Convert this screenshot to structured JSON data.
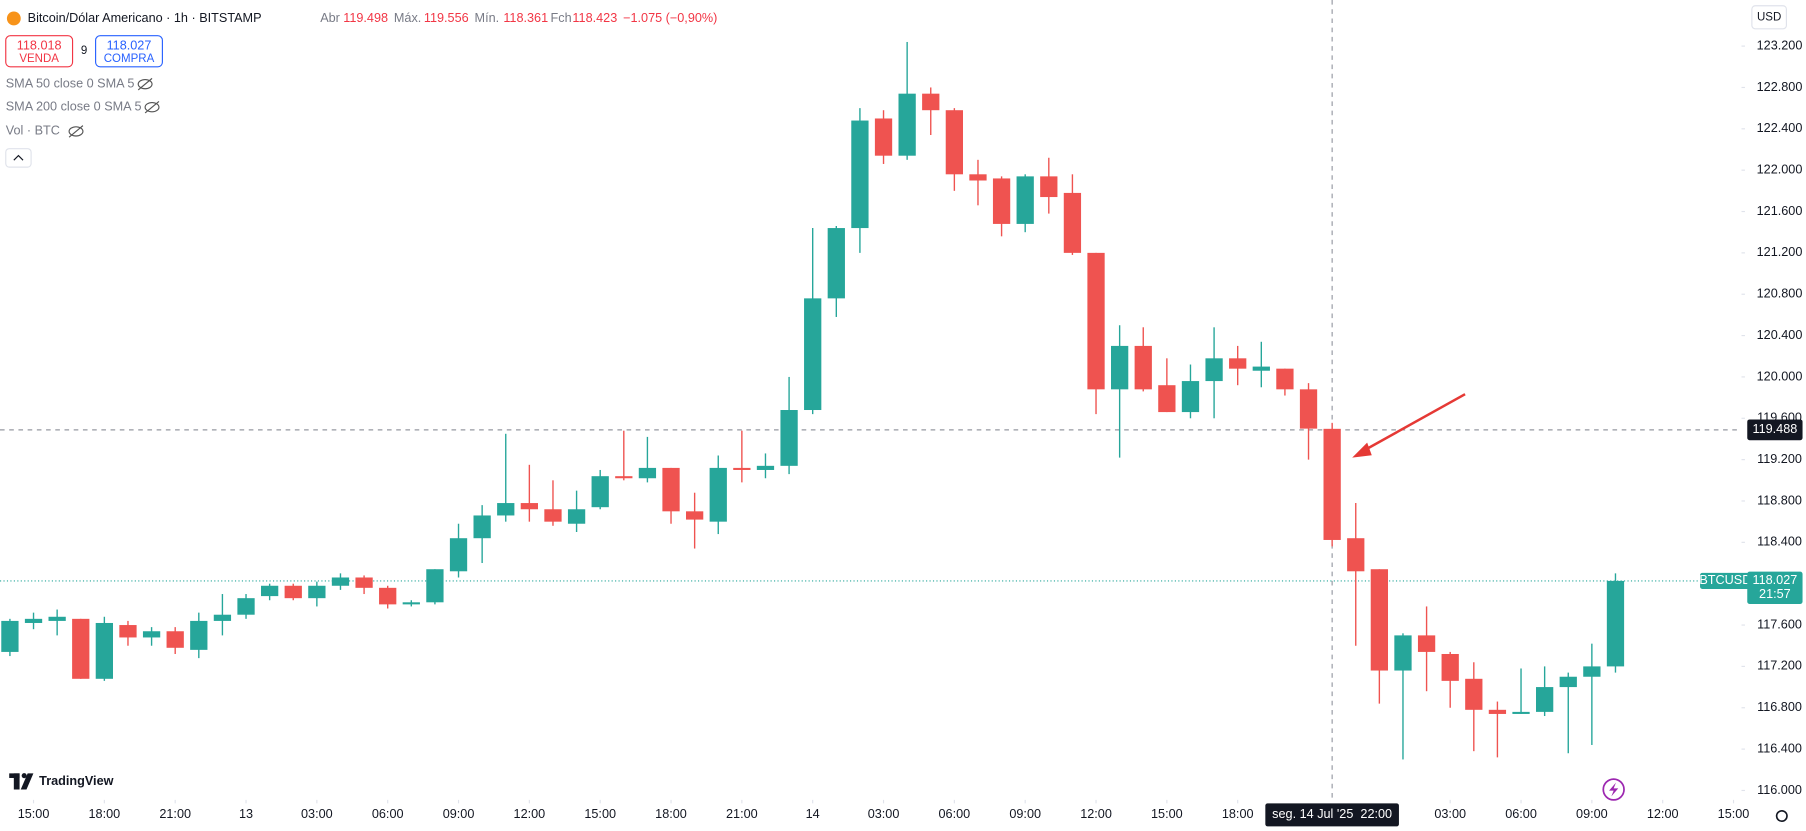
{
  "chart_data": {
    "type": "candlestick",
    "symbol": "Bitcoin/Dólar Americano · 1h · BITSTAMP",
    "ohlc": [
      {
        "label": "Abr",
        "value": 119.498
      },
      {
        "label": "Máx.",
        "value": 119.556
      },
      {
        "label": "Mín.",
        "value": 118.361
      },
      {
        "label": "Fch",
        "value": 118.423
      }
    ],
    "change": "−1.075 (−0,90%)",
    "sell": {
      "price": 118.018,
      "label": "VENDA"
    },
    "spread": 9,
    "buy": {
      "price": 118.027,
      "label": "COMPRA"
    },
    "indicators": [
      "SMA 50 close 0 SMA 5",
      "SMA 200 close 0 SMA 5",
      "Vol · BTC"
    ],
    "currency": "USD",
    "brand": "TradingView",
    "up_color": "#26a69a",
    "down_color": "#ef5350",
    "series": {
      "open": [
        117.34,
        117.62,
        117.64,
        117.66,
        117.08,
        117.6,
        117.48,
        117.54,
        117.36,
        117.64,
        117.7,
        117.88,
        117.98,
        117.86,
        117.98,
        118.06,
        117.96,
        117.8,
        117.82,
        118.12,
        118.44,
        118.66,
        118.78,
        118.72,
        118.58,
        118.74,
        119.04,
        119.02,
        119.12,
        118.7,
        118.6,
        119.12,
        119.1,
        119.14,
        119.68,
        120.76,
        121.44,
        122.5,
        122.14,
        122.74,
        122.58,
        121.96,
        121.92,
        121.48,
        121.94,
        121.78,
        121.2,
        119.88,
        120.3,
        119.92,
        119.66,
        119.96,
        120.18,
        120.06,
        120.08,
        119.88,
        119.498,
        118.44,
        118.14,
        117.16,
        117.5,
        117.32,
        117.08,
        116.78,
        116.74,
        116.76,
        117.0,
        117.1,
        117.2
      ],
      "high": [
        117.66,
        117.72,
        117.75,
        117.66,
        117.68,
        117.64,
        117.58,
        117.58,
        117.72,
        117.9,
        117.9,
        118.0,
        118.0,
        118.02,
        118.1,
        118.08,
        117.98,
        117.84,
        118.14,
        118.58,
        118.76,
        119.45,
        119.15,
        119.0,
        118.9,
        119.1,
        119.48,
        119.42,
        119.12,
        118.88,
        119.24,
        119.48,
        119.26,
        120.0,
        121.44,
        121.46,
        122.6,
        122.58,
        123.24,
        122.8,
        122.6,
        122.1,
        121.94,
        121.96,
        122.12,
        121.96,
        121.2,
        120.5,
        120.48,
        120.18,
        120.12,
        120.48,
        120.3,
        120.34,
        120.08,
        119.94,
        119.556,
        118.78,
        118.14,
        117.52,
        117.78,
        117.34,
        117.24,
        116.86,
        117.18,
        117.2,
        117.14,
        117.42,
        118.1
      ],
      "low": [
        117.3,
        117.56,
        117.5,
        117.08,
        117.06,
        117.4,
        117.4,
        117.32,
        117.28,
        117.5,
        117.66,
        117.84,
        117.84,
        117.78,
        117.94,
        117.9,
        117.76,
        117.78,
        117.8,
        118.06,
        118.2,
        118.6,
        118.6,
        118.56,
        118.5,
        118.72,
        119.0,
        118.98,
        118.58,
        118.34,
        118.48,
        118.98,
        119.02,
        119.06,
        119.64,
        120.58,
        121.2,
        122.06,
        122.1,
        122.34,
        121.8,
        121.66,
        121.36,
        121.4,
        121.58,
        121.18,
        119.64,
        119.22,
        119.86,
        119.66,
        119.6,
        119.6,
        119.92,
        119.9,
        119.82,
        119.2,
        118.361,
        117.4,
        116.84,
        116.3,
        116.96,
        116.8,
        116.38,
        116.32,
        116.74,
        116.72,
        116.36,
        116.44,
        117.14
      ],
      "close": [
        117.64,
        117.66,
        117.68,
        117.08,
        117.62,
        117.48,
        117.54,
        117.38,
        117.64,
        117.7,
        117.86,
        117.98,
        117.86,
        117.98,
        118.06,
        117.96,
        117.8,
        117.82,
        118.14,
        118.44,
        118.66,
        118.78,
        118.72,
        118.6,
        118.72,
        119.04,
        119.02,
        119.12,
        118.7,
        118.62,
        119.12,
        119.1,
        119.14,
        119.68,
        120.76,
        121.44,
        122.48,
        122.14,
        122.74,
        122.58,
        121.96,
        121.9,
        121.48,
        121.94,
        121.74,
        121.2,
        119.88,
        120.3,
        119.88,
        119.66,
        119.96,
        120.18,
        120.08,
        120.1,
        119.88,
        119.5,
        118.423,
        118.12,
        117.16,
        117.5,
        117.34,
        117.06,
        116.78,
        116.74,
        116.76,
        117.0,
        117.1,
        117.2,
        118.027
      ]
    },
    "xlim": [
      -0.42,
      73.24
    ],
    "xticks": [
      {
        "value": 1,
        "label": "15:00"
      },
      {
        "value": 4,
        "label": "18:00"
      },
      {
        "value": 7,
        "label": "21:00"
      },
      {
        "value": 10,
        "label": "13"
      },
      {
        "value": 13,
        "label": "03:00"
      },
      {
        "value": 16,
        "label": "06:00"
      },
      {
        "value": 19,
        "label": "09:00"
      },
      {
        "value": 22,
        "label": "12:00"
      },
      {
        "value": 25,
        "label": "15:00"
      },
      {
        "value": 28,
        "label": "18:00"
      },
      {
        "value": 31,
        "label": "21:00"
      },
      {
        "value": 34,
        "label": "14"
      },
      {
        "value": 37,
        "label": "03:00"
      },
      {
        "value": 40,
        "label": "06:00"
      },
      {
        "value": 43,
        "label": "09:00"
      },
      {
        "value": 46,
        "label": "12:00"
      },
      {
        "value": 49,
        "label": "15:00"
      },
      {
        "value": 52,
        "label": "18:00"
      },
      {
        "value": 61,
        "label": "03:00"
      },
      {
        "value": 64,
        "label": "06:00"
      },
      {
        "value": 67,
        "label": "09:00"
      },
      {
        "value": 70,
        "label": "12:00"
      },
      {
        "value": 73,
        "label": "15:00"
      }
    ],
    "ylim": [
      115.92,
      123.646
    ],
    "yticks": [
      {
        "value": 116.0,
        "label": "116.000"
      },
      {
        "value": 116.4,
        "label": "116.400"
      },
      {
        "value": 116.8,
        "label": "116.800"
      },
      {
        "value": 117.2,
        "label": "117.200"
      },
      {
        "value": 117.6,
        "label": "117.600"
      },
      {
        "value": 118.0,
        "label": "118.000"
      },
      {
        "value": 118.4,
        "label": "118.400"
      },
      {
        "value": 118.8,
        "label": "118.800"
      },
      {
        "value": 119.2,
        "label": "119.200"
      },
      {
        "value": 119.6,
        "label": "119.600"
      },
      {
        "value": 120.0,
        "label": "120.000"
      },
      {
        "value": 120.4,
        "label": "120.400"
      },
      {
        "value": 120.8,
        "label": "120.800"
      },
      {
        "value": 121.2,
        "label": "121.200"
      },
      {
        "value": 121.6,
        "label": "121.600"
      },
      {
        "value": 122.0,
        "label": "122.000"
      },
      {
        "value": 122.4,
        "label": "122.400"
      },
      {
        "value": 122.8,
        "label": "122.800"
      },
      {
        "value": 123.2,
        "label": "123.200"
      }
    ],
    "grid": false,
    "crosshair": {
      "price": 119.488,
      "index": 56,
      "time_label": "seg. 14 Jul '25  22:00"
    },
    "last_price": {
      "name": "BTCUSD",
      "price": 118.027,
      "countdown": "21:57",
      "color": "#26a69a"
    }
  }
}
